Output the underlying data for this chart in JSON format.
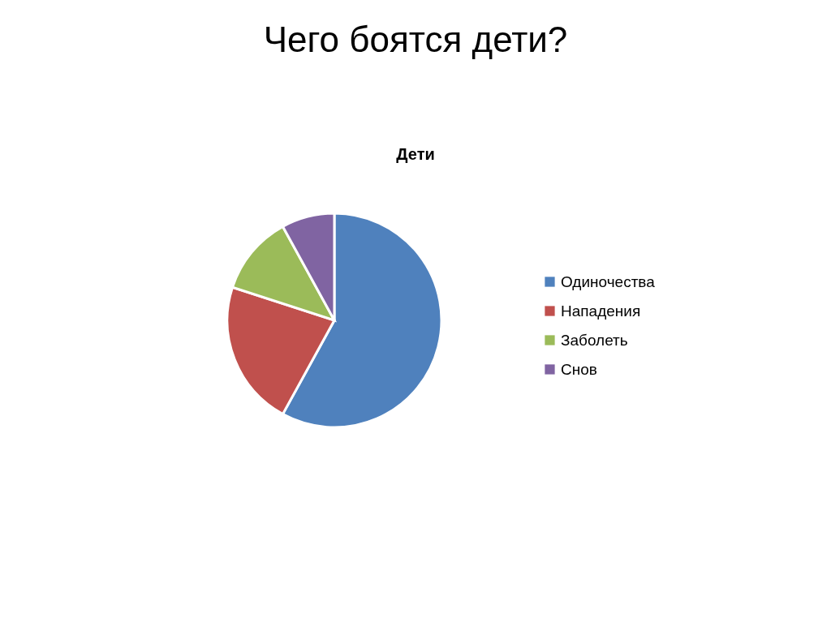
{
  "chart_data": {
    "type": "pie",
    "title": "Чего боятся дети?",
    "subtitle": "Дети",
    "categories": [
      "Одиночества",
      "Нападения",
      "Заболеть",
      "Снов"
    ],
    "values": [
      58,
      22,
      12,
      8
    ],
    "colors": [
      "#4f81bd",
      "#c0504d",
      "#9bbb59",
      "#8064a2"
    ],
    "legend": "right"
  }
}
